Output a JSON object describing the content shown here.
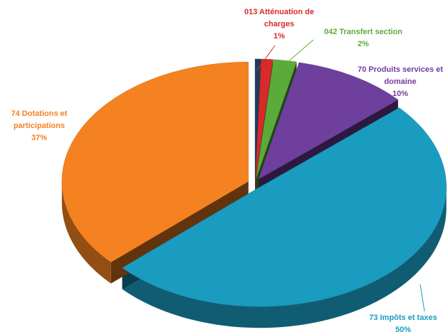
{
  "chart_data": {
    "type": "pie",
    "categories": [
      null,
      "013 Atténuation de charges",
      "042 Transfert section",
      "70 Produits services et domaine",
      "73 Impôts et taxes",
      "74 Dotations et participations"
    ],
    "values": [
      0.5,
      1,
      2,
      10,
      50,
      37
    ],
    "value_labels": [
      null,
      "1%",
      "2%",
      "10%",
      "50%",
      "37%"
    ],
    "colors": [
      "#1f3b5c",
      "#d82a2a",
      "#5aab3a",
      "#6f3f9e",
      "#1a9bc0",
      "#f58220"
    ]
  }
}
